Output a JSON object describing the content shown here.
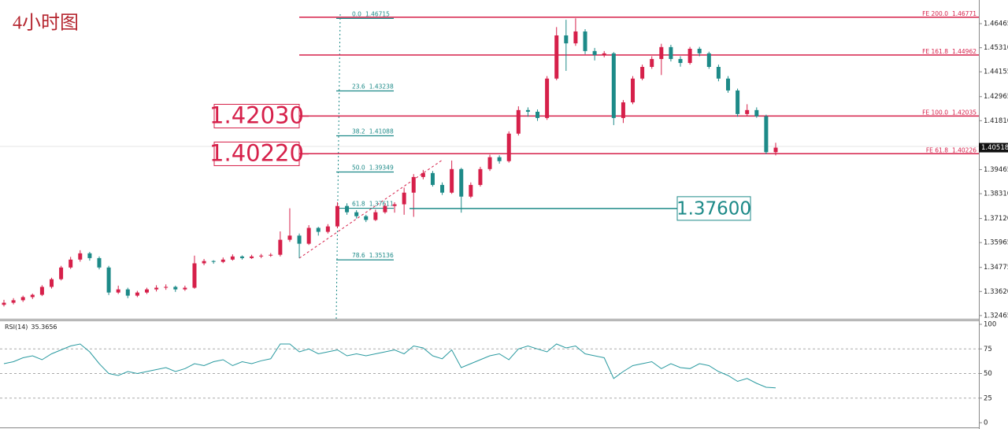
{
  "chart_data": {
    "type": "candlestick",
    "title": "4小时图",
    "up_color": "#d6204a",
    "down_color": "#1d8a88",
    "ylim": [
      1.3231,
      1.4741
    ],
    "yticks": [
      1.46465,
      {
        "value": 1.4531,
        "label": "1.45310"
      },
      1.44155,
      1.42965,
      {
        "value": 1.4181,
        "label": "1.41810"
      },
      1.39465,
      {
        "value": 1.3831,
        "label": "1.38310"
      },
      {
        "value": 1.3712,
        "label": "1.37120"
      },
      1.35965,
      1.34775,
      {
        "value": 1.3362,
        "label": "1.33620"
      },
      1.32465
    ],
    "current_price": 1.40518,
    "candles": [
      [
        1.3298,
        1.3322,
        1.329,
        1.3308
      ],
      [
        1.3308,
        1.333,
        1.33,
        1.332
      ],
      [
        1.332,
        1.3342,
        1.3312,
        1.3335
      ],
      [
        1.3335,
        1.3352,
        1.3326,
        1.3346
      ],
      [
        1.3346,
        1.3392,
        1.334,
        1.3384
      ],
      [
        1.3384,
        1.3428,
        1.3376,
        1.3421
      ],
      [
        1.3421,
        1.3485,
        1.3415,
        1.3477
      ],
      [
        1.3477,
        1.3528,
        1.347,
        1.3515
      ],
      [
        1.3515,
        1.356,
        1.3505,
        1.3545
      ],
      [
        1.3545,
        1.3552,
        1.351,
        1.3522
      ],
      [
        1.3522,
        1.353,
        1.3468,
        1.3477
      ],
      [
        1.3477,
        1.3485,
        1.3345,
        1.3357
      ],
      [
        1.3357,
        1.339,
        1.335,
        1.3372
      ],
      [
        1.3372,
        1.338,
        1.333,
        1.3342
      ],
      [
        1.3342,
        1.3365,
        1.3335,
        1.3357
      ],
      [
        1.3357,
        1.338,
        1.335,
        1.3372
      ],
      [
        1.3372,
        1.3392,
        1.3362,
        1.338
      ],
      [
        1.338,
        1.3396,
        1.337,
        1.3384
      ],
      [
        1.3384,
        1.339,
        1.336,
        1.3372
      ],
      [
        1.3372,
        1.339,
        1.3365,
        1.338
      ],
      [
        1.338,
        1.3534,
        1.3375,
        1.3497
      ],
      [
        1.3497,
        1.3518,
        1.3488,
        1.3508
      ],
      [
        1.3508,
        1.3512,
        1.3495,
        1.3504
      ],
      [
        1.3504,
        1.3525,
        1.3498,
        1.3515
      ],
      [
        1.3515,
        1.354,
        1.351,
        1.353
      ],
      [
        1.353,
        1.3535,
        1.3515,
        1.3522
      ],
      [
        1.3522,
        1.3538,
        1.3518,
        1.353
      ],
      [
        1.353,
        1.3542,
        1.3522,
        1.3534
      ],
      [
        1.3534,
        1.3546,
        1.3528,
        1.3538
      ],
      [
        1.3538,
        1.365,
        1.353,
        1.361
      ],
      [
        1.361,
        1.3761,
        1.36,
        1.363
      ],
      [
        1.363,
        1.364,
        1.3522,
        1.3591
      ],
      [
        1.3591,
        1.368,
        1.3585,
        1.3667
      ],
      [
        1.3667,
        1.3672,
        1.363,
        1.3648
      ],
      [
        1.3648,
        1.3685,
        1.364,
        1.3674
      ],
      [
        1.3674,
        1.379,
        1.3665,
        1.3772
      ],
      [
        1.3772,
        1.3785,
        1.373,
        1.3742
      ],
      [
        1.3742,
        1.3752,
        1.3712,
        1.3723
      ],
      [
        1.3723,
        1.373,
        1.3695,
        1.3705
      ],
      [
        1.3705,
        1.3755,
        1.37,
        1.3742
      ],
      [
        1.3742,
        1.3785,
        1.3735,
        1.3772
      ],
      [
        1.3772,
        1.379,
        1.374,
        1.378
      ],
      [
        1.378,
        1.386,
        1.373,
        1.3836
      ],
      [
        1.3836,
        1.3925,
        1.372,
        1.3911
      ],
      [
        1.3911,
        1.3945,
        1.39,
        1.393
      ],
      [
        1.393,
        1.394,
        1.3865,
        1.3873
      ],
      [
        1.3873,
        1.3885,
        1.3825,
        1.3836
      ],
      [
        1.3836,
        1.399,
        1.383,
        1.3949
      ],
      [
        1.3949,
        1.3955,
        1.374,
        1.3817
      ],
      [
        1.3817,
        1.3885,
        1.381,
        1.3873
      ],
      [
        1.3873,
        1.396,
        1.3865,
        1.3949
      ],
      [
        1.3949,
        1.4018,
        1.394,
        1.4006
      ],
      [
        1.4006,
        1.4015,
        1.3975,
        1.3987
      ],
      [
        1.3987,
        1.413,
        1.398,
        1.4119
      ],
      [
        1.4119,
        1.425,
        1.411,
        1.4232
      ],
      [
        1.4232,
        1.4245,
        1.42,
        1.4224
      ],
      [
        1.4224,
        1.4235,
        1.418,
        1.4194
      ],
      [
        1.4194,
        1.4395,
        1.4185,
        1.4383
      ],
      [
        1.4383,
        1.463,
        1.4375,
        1.459
      ],
      [
        1.459,
        1.4665,
        1.442,
        1.4552
      ],
      [
        1.4552,
        1.4672,
        1.454,
        1.4609
      ],
      [
        1.4609,
        1.462,
        1.45,
        1.4515
      ],
      [
        1.4515,
        1.453,
        1.447,
        1.4496
      ],
      [
        1.4496,
        1.4515,
        1.4485,
        1.4504
      ],
      [
        1.4504,
        1.451,
        1.416,
        1.4194
      ],
      [
        1.4194,
        1.428,
        1.417,
        1.4269
      ],
      [
        1.4269,
        1.4395,
        1.426,
        1.4383
      ],
      [
        1.4383,
        1.445,
        1.4375,
        1.4439
      ],
      [
        1.4439,
        1.449,
        1.443,
        1.4477
      ],
      [
        1.4477,
        1.455,
        1.44,
        1.4534
      ],
      [
        1.4534,
        1.4545,
        1.4465,
        1.4477
      ],
      [
        1.4477,
        1.449,
        1.444,
        1.4458
      ],
      [
        1.4458,
        1.4535,
        1.445,
        1.4526
      ],
      [
        1.4526,
        1.4535,
        1.449,
        1.4504
      ],
      [
        1.4504,
        1.4512,
        1.443,
        1.4439
      ],
      [
        1.4439,
        1.445,
        1.437,
        1.4383
      ],
      [
        1.4383,
        1.4395,
        1.4315,
        1.4326
      ],
      [
        1.4326,
        1.4335,
        1.42,
        1.4213
      ],
      [
        1.4213,
        1.426,
        1.4205,
        1.4232
      ],
      [
        1.4232,
        1.4245,
        1.4195,
        1.4202
      ],
      [
        1.4202,
        1.421,
        1.402,
        1.403
      ],
      [
        1.403,
        1.4075,
        1.4015,
        1.40518
      ]
    ],
    "fe_levels": [
      {
        "name": "FE 200.0",
        "value": 1.46771
      },
      {
        "name": "FE 161.8",
        "value": 1.44962
      },
      {
        "name": "FE 100.0",
        "value": 1.42035
      },
      {
        "name": "FE 61.8",
        "value": 1.40226
      }
    ],
    "fib_levels": [
      {
        "name": "0.0",
        "value": 1.46715
      },
      {
        "name": "23.6",
        "value": 1.43238
      },
      {
        "name": "38.2",
        "value": 1.41088
      },
      {
        "name": "50.0",
        "value": 1.39349
      },
      {
        "name": "61.8",
        "value": 1.37611
      },
      {
        "name": "78.6",
        "value": 1.35136
      }
    ],
    "price_boxes": [
      {
        "value": 1.4203,
        "label": "1.42030",
        "color": "#d6204a"
      },
      {
        "value": 1.4022,
        "label": "1.40220",
        "color": "#d6204a"
      },
      {
        "value": 1.376,
        "label": "1.37600",
        "color": "#1d8a88"
      }
    ],
    "rsi": {
      "name": "RSI(14)",
      "color": "#2a9aa0",
      "ylim": [
        -4.8,
        103.2
      ],
      "yticks": [
        100,
        75,
        50,
        25,
        0
      ],
      "grid": [
        75,
        50,
        25
      ],
      "values": [
        60,
        62,
        66,
        68,
        64,
        70,
        74,
        78,
        80,
        72,
        60,
        50,
        48,
        52,
        50,
        52,
        54,
        56,
        52,
        55,
        60,
        58,
        62,
        64,
        58,
        62,
        60,
        63,
        65,
        80,
        80,
        72,
        75,
        70,
        72,
        74,
        68,
        70,
        68,
        70,
        72,
        74,
        70,
        78,
        76,
        68,
        65,
        74,
        56,
        60,
        64,
        68,
        70,
        64,
        75,
        78,
        75,
        72,
        80,
        76,
        78,
        70,
        68,
        66,
        45,
        52,
        58,
        60,
        62,
        55,
        60,
        56,
        55,
        60,
        58,
        52,
        48,
        42,
        45,
        40,
        36,
        35.3656
      ]
    }
  }
}
